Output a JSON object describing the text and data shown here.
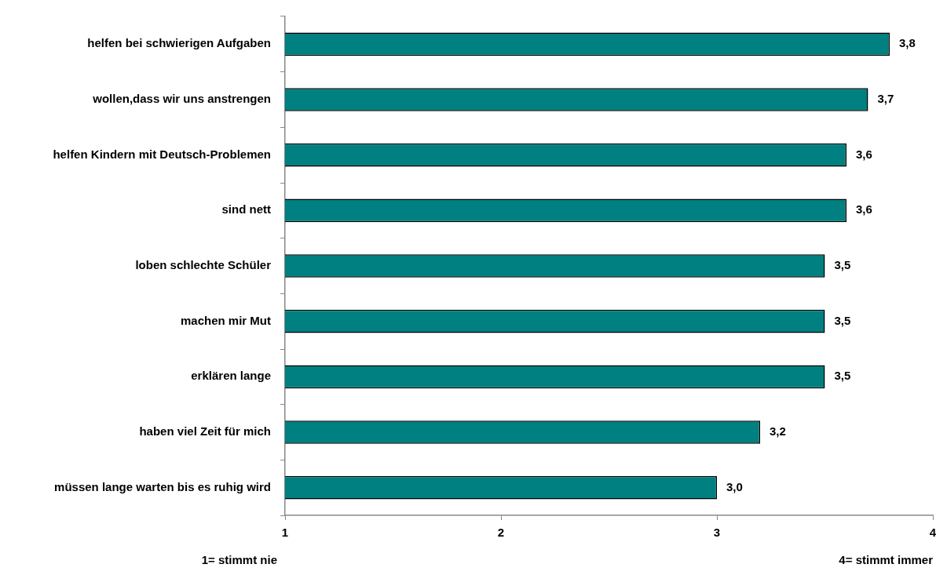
{
  "chart_data": {
    "type": "bar",
    "orientation": "horizontal",
    "categories": [
      "helfen bei schwierigen Aufgaben",
      "wollen,dass wir uns anstrengen",
      "helfen Kindern mit Deutsch-Problemen",
      "sind nett",
      "loben schlechte Schüler",
      "machen mir Mut",
      "erklären lange",
      "haben viel Zeit für mich",
      "müssen lange warten bis es ruhig wird"
    ],
    "values": [
      3.8,
      3.7,
      3.6,
      3.6,
      3.5,
      3.5,
      3.5,
      3.2,
      3.0
    ],
    "value_labels": [
      "3,8",
      "3,7",
      "3,6",
      "3,6",
      "3,5",
      "3,5",
      "3,5",
      "3,2",
      "3,0"
    ],
    "color": "#008080",
    "xlim": [
      1,
      4
    ],
    "xticks": [
      1,
      2,
      3,
      4
    ],
    "grid": false,
    "legend": false,
    "annotations": [
      "1= stimmt nie",
      "4= stimmt immer"
    ]
  }
}
